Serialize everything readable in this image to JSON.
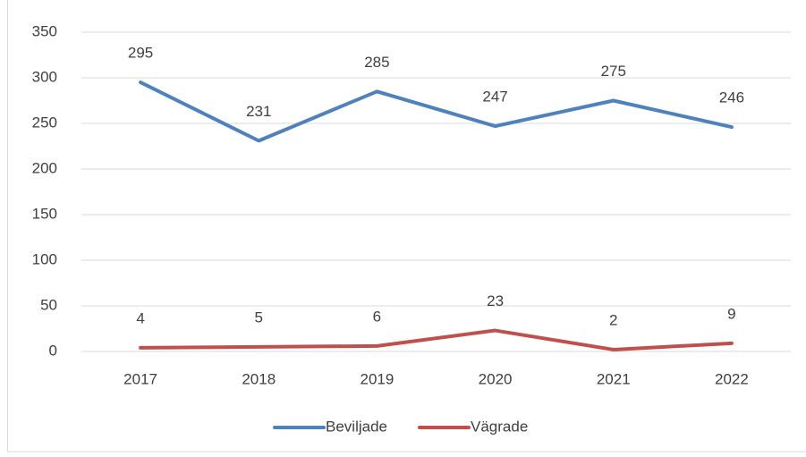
{
  "chart_data": {
    "type": "line",
    "categories": [
      "2017",
      "2018",
      "2019",
      "2020",
      "2021",
      "2022"
    ],
    "series": [
      {
        "name": "Beviljade",
        "color": "#4f81bd",
        "values": [
          295,
          231,
          285,
          247,
          275,
          246
        ]
      },
      {
        "name": "Vägrade",
        "color": "#c0504d",
        "values": [
          4,
          5,
          6,
          23,
          2,
          9
        ]
      }
    ],
    "ylim": [
      0,
      350
    ],
    "yticks": [
      0,
      50,
      100,
      150,
      200,
      250,
      300,
      350
    ],
    "grid": true,
    "legend": "bottom"
  }
}
